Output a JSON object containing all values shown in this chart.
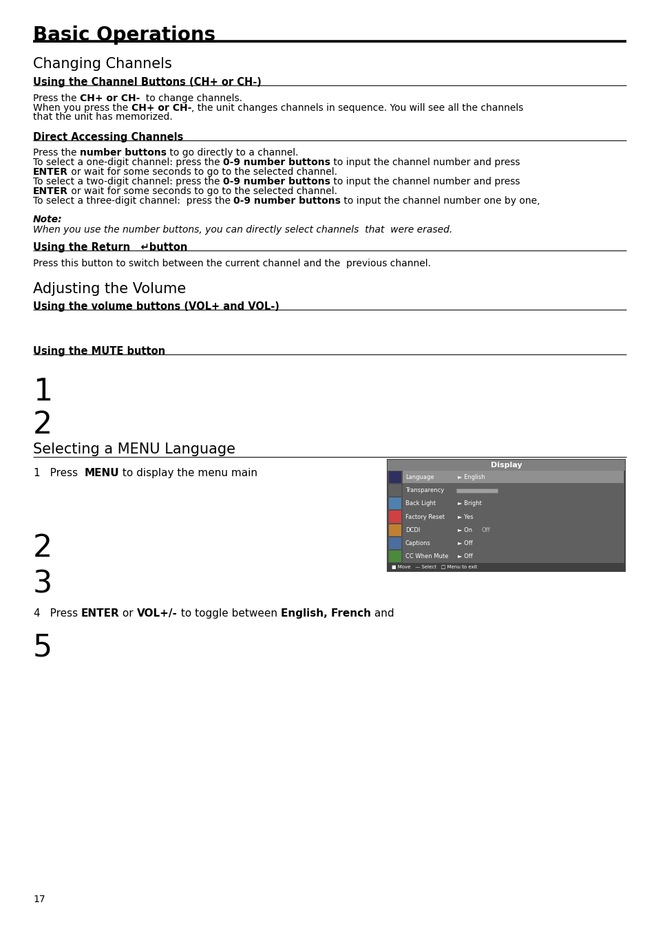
{
  "bg_color": "#ffffff",
  "main_title": "Basic Operations",
  "section1_title": "Changing Channels",
  "subsection1_title": "Using the Channel Buttons (CH+ or CH-)",
  "subsection2_title": "Direct Accessing Channels",
  "note_label": "Note:",
  "note_body": "When you use the number buttons, you can directly select channels  that  were erased.",
  "subsection3_title": "Using the Return   ↵button",
  "subsection3_body": "Press this button to switch between the current channel and the  previous channel.",
  "section2_title": "Adjusting the Volume",
  "subsection4_title": "Using the volume buttons (VOL+ and VOL-)",
  "subsection5_title": "Using the MUTE button",
  "section3_title": "Selecting a MENU Language",
  "page_number": "17",
  "L": 48,
  "R": 910
}
